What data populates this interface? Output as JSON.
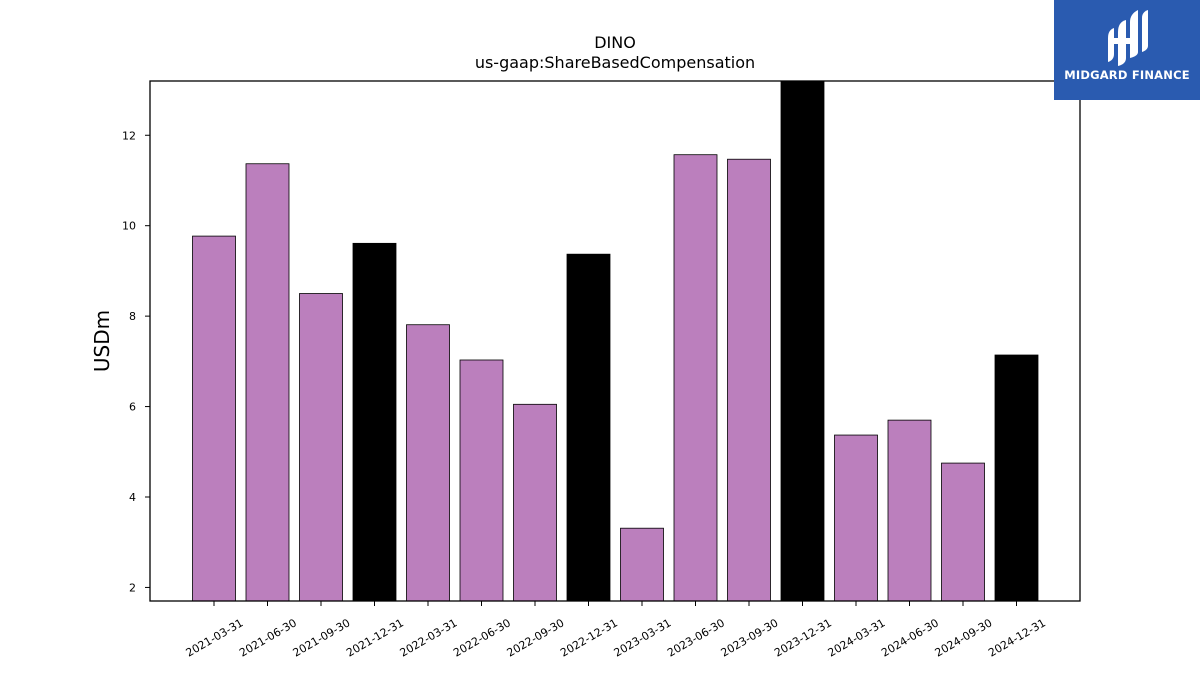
{
  "chart_data": {
    "type": "bar",
    "title": "DINO",
    "subtitle": "us-gaap:ShareBasedCompensation",
    "xlabel": "",
    "ylabel": "USDm",
    "ylim": [
      1.7,
      13.2
    ],
    "yticks": [
      2,
      4,
      6,
      8,
      10,
      12
    ],
    "grid": false,
    "categories": [
      "2021-03-31",
      "2021-06-30",
      "2021-09-30",
      "2021-12-31",
      "2022-03-31",
      "2022-06-30",
      "2022-09-30",
      "2022-12-31",
      "2023-03-31",
      "2023-06-30",
      "2023-09-30",
      "2023-12-31",
      "2024-03-31",
      "2024-06-30",
      "2024-09-30",
      "2024-12-31"
    ],
    "values": [
      9.77,
      11.37,
      8.5,
      9.61,
      7.81,
      7.03,
      6.05,
      9.37,
      3.31,
      11.57,
      11.47,
      13.25,
      5.37,
      5.7,
      4.75,
      7.14
    ],
    "bar_colors": [
      "#bb7fbd",
      "#bb7fbd",
      "#bb7fbd",
      "#000000",
      "#bb7fbd",
      "#bb7fbd",
      "#bb7fbd",
      "#000000",
      "#bb7fbd",
      "#bb7fbd",
      "#bb7fbd",
      "#000000",
      "#bb7fbd",
      "#bb7fbd",
      "#bb7fbd",
      "#000000"
    ],
    "colors": {
      "quarter_bar": "#bb7fbd",
      "year_end_bar": "#000000",
      "bar_edge": "#000000"
    }
  },
  "logo": {
    "text": "MIDGARD FINANCE",
    "background": "#2a5bb0"
  }
}
